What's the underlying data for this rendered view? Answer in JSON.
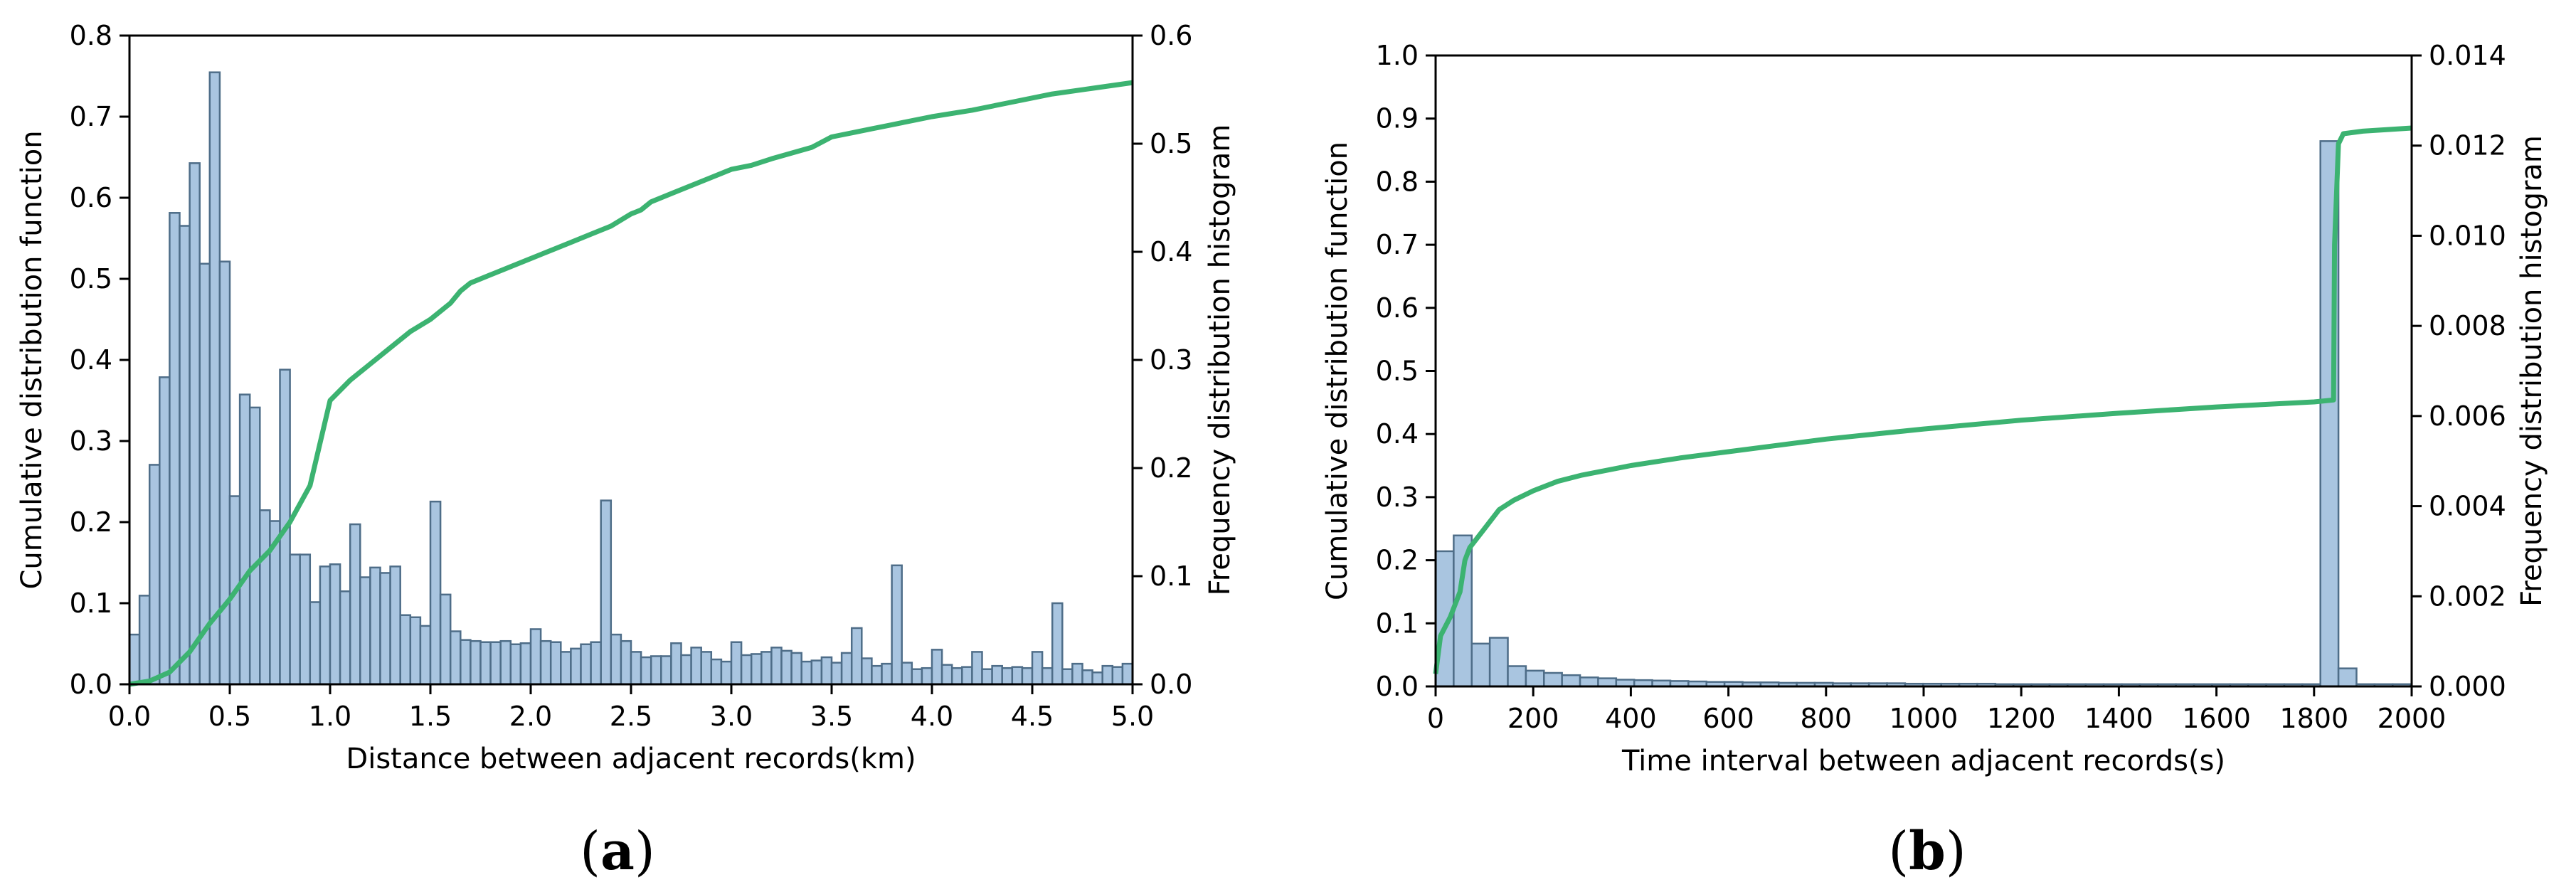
{
  "figure": {
    "panel_labels": [
      {
        "open": "(",
        "letter": "a",
        "close": ")"
      },
      {
        "open": "(",
        "letter": "b",
        "close": ")"
      }
    ]
  },
  "colors": {
    "cdf_line": "#3cb371",
    "hist_fill": "#a9c5e0",
    "hist_edge": "#4e6d88",
    "axis": "#000000"
  },
  "chart_data": [
    {
      "id": "a",
      "type": "bar",
      "title": "",
      "xlabel": "Distance between adjacent records(km)",
      "ylabel": "Cumulative distribution function",
      "y2label": "Frequency distribution histogram",
      "xlim": [
        0,
        5
      ],
      "ylim": [
        0,
        0.8
      ],
      "y2lim": [
        0,
        0.6
      ],
      "xticks": [
        0,
        0.5,
        1,
        1.5,
        2,
        2.5,
        3,
        3.5,
        4,
        4.5,
        5
      ],
      "xtick_labels": [
        "0.0",
        "0.5",
        "1.0",
        "1.5",
        "2.0",
        "2.5",
        "3.0",
        "3.5",
        "4.0",
        "4.5",
        "5.0"
      ],
      "yticks": [
        0,
        0.1,
        0.2,
        0.3,
        0.4,
        0.5,
        0.6,
        0.7,
        0.8
      ],
      "ytick_labels": [
        "0.0",
        "0.1",
        "0.2",
        "0.3",
        "0.4",
        "0.5",
        "0.6",
        "0.7",
        "0.8"
      ],
      "y2ticks": [
        0,
        0.1,
        0.2,
        0.3,
        0.4,
        0.5,
        0.6
      ],
      "y2tick_labels": [
        "0.0",
        "0.1",
        "0.2",
        "0.3",
        "0.4",
        "0.5",
        "0.6"
      ],
      "grid": false,
      "histogram": {
        "axis": "right",
        "bin_start": 0,
        "bin_width": 0.05,
        "values": [
          0.046,
          0.082,
          0.203,
          0.284,
          0.436,
          0.424,
          0.482,
          0.389,
          0.566,
          0.391,
          0.174,
          0.268,
          0.256,
          0.161,
          0.151,
          0.291,
          0.12,
          0.12,
          0.076,
          0.109,
          0.111,
          0.086,
          0.148,
          0.099,
          0.108,
          0.103,
          0.109,
          0.064,
          0.062,
          0.054,
          0.169,
          0.083,
          0.049,
          0.041,
          0.04,
          0.039,
          0.039,
          0.04,
          0.037,
          0.038,
          0.051,
          0.04,
          0.039,
          0.03,
          0.033,
          0.037,
          0.039,
          0.17,
          0.046,
          0.04,
          0.03,
          0.025,
          0.026,
          0.026,
          0.038,
          0.027,
          0.034,
          0.03,
          0.023,
          0.021,
          0.039,
          0.027,
          0.028,
          0.03,
          0.034,
          0.031,
          0.029,
          0.021,
          0.022,
          0.025,
          0.02,
          0.029,
          0.052,
          0.024,
          0.017,
          0.019,
          0.11,
          0.02,
          0.014,
          0.015,
          0.032,
          0.018,
          0.015,
          0.016,
          0.03,
          0.014,
          0.017,
          0.015,
          0.016,
          0.015,
          0.03,
          0.015,
          0.075,
          0.014,
          0.019,
          0.013,
          0.011,
          0.017,
          0.016,
          0.019,
          0.017,
          0.022,
          0.016,
          0.015,
          0.02,
          0.016,
          0.019,
          0.014,
          0.012,
          0.024,
          0.019,
          0.016,
          0.02,
          0.025,
          0.016,
          0.012,
          0.016,
          0.017,
          0.02,
          0.019,
          0.021,
          0.019,
          0.02,
          0.027,
          0.017
        ]
      },
      "cdf": {
        "axis": "left",
        "x": [
          0,
          0.1,
          0.2,
          0.3,
          0.4,
          0.5,
          0.6,
          0.7,
          0.8,
          0.9,
          1.0,
          1.1,
          1.2,
          1.3,
          1.4,
          1.5,
          1.6,
          1.65,
          1.7,
          1.8,
          1.9,
          2.0,
          2.1,
          2.2,
          2.3,
          2.4,
          2.5,
          2.55,
          2.6,
          2.7,
          2.8,
          2.9,
          3.0,
          3.1,
          3.2,
          3.3,
          3.4,
          3.5,
          3.6,
          3.7,
          3.8,
          3.9,
          4.0,
          4.2,
          4.4,
          4.6,
          4.8,
          5.0
        ],
        "y": [
          0.0,
          0.004,
          0.015,
          0.04,
          0.075,
          0.105,
          0.14,
          0.165,
          0.2,
          0.245,
          0.35,
          0.375,
          0.395,
          0.415,
          0.435,
          0.45,
          0.47,
          0.485,
          0.495,
          0.505,
          0.515,
          0.525,
          0.535,
          0.545,
          0.555,
          0.565,
          0.58,
          0.585,
          0.595,
          0.605,
          0.615,
          0.625,
          0.635,
          0.64,
          0.648,
          0.655,
          0.662,
          0.675,
          0.68,
          0.685,
          0.69,
          0.695,
          0.7,
          0.708,
          0.718,
          0.728,
          0.735,
          0.742
        ]
      }
    },
    {
      "id": "b",
      "type": "bar",
      "title": "",
      "xlabel": "Time interval between adjacent records(s)",
      "ylabel": "Cumulative distribution function",
      "y2label": "Frequency distribution histogram",
      "xlim": [
        0,
        2000
      ],
      "ylim": [
        0,
        1.0
      ],
      "y2lim": [
        0,
        0.014
      ],
      "xticks": [
        0,
        200,
        400,
        600,
        800,
        1000,
        1200,
        1400,
        1600,
        1800,
        2000
      ],
      "xtick_labels": [
        "0",
        "200",
        "400",
        "600",
        "800",
        "1000",
        "1200",
        "1400",
        "1600",
        "1800",
        "2000"
      ],
      "yticks": [
        0,
        0.1,
        0.2,
        0.3,
        0.4,
        0.5,
        0.6,
        0.7,
        0.8,
        0.9,
        1.0
      ],
      "ytick_labels": [
        "0.0",
        "0.1",
        "0.2",
        "0.3",
        "0.4",
        "0.5",
        "0.6",
        "0.7",
        "0.8",
        "0.9",
        "1.0"
      ],
      "y2ticks": [
        0,
        0.002,
        0.004,
        0.006,
        0.008,
        0.01,
        0.012,
        0.014
      ],
      "y2tick_labels": [
        "0.000",
        "0.002",
        "0.004",
        "0.006",
        "0.008",
        "0.010",
        "0.012",
        "0.014"
      ],
      "grid": false,
      "histogram": {
        "axis": "right",
        "bin_start": 0,
        "bin_width": 37,
        "values": [
          0.003,
          0.00335,
          0.00095,
          0.00108,
          0.00045,
          0.00035,
          0.0003,
          0.00025,
          0.0002,
          0.00018,
          0.00015,
          0.00014,
          0.00013,
          0.00012,
          0.00011,
          0.0001,
          0.0001,
          9e-05,
          9e-05,
          8e-05,
          8e-05,
          8e-05,
          7e-05,
          7e-05,
          7e-05,
          7e-05,
          6e-05,
          6e-05,
          6e-05,
          6e-05,
          6e-05,
          5e-05,
          5e-05,
          5e-05,
          5e-05,
          5e-05,
          5e-05,
          5e-05,
          5e-05,
          5e-05,
          5e-05,
          5e-05,
          5e-05,
          5e-05,
          5e-05,
          5e-05,
          5e-05,
          5e-05,
          5e-05,
          0.0121,
          0.0004,
          5e-05,
          5e-05,
          5e-05
        ]
      },
      "cdf": {
        "axis": "left",
        "x": [
          0,
          10,
          30,
          50,
          60,
          70,
          100,
          130,
          160,
          200,
          250,
          300,
          400,
          500,
          600,
          800,
          1000,
          1200,
          1400,
          1600,
          1800,
          1840,
          1842,
          1850,
          1860,
          1900,
          2000
        ],
        "y": [
          0.02,
          0.08,
          0.11,
          0.15,
          0.2,
          0.22,
          0.25,
          0.28,
          0.295,
          0.31,
          0.325,
          0.335,
          0.35,
          0.362,
          0.372,
          0.392,
          0.408,
          0.422,
          0.433,
          0.443,
          0.451,
          0.454,
          0.7,
          0.86,
          0.876,
          0.88,
          0.885
        ]
      }
    }
  ]
}
